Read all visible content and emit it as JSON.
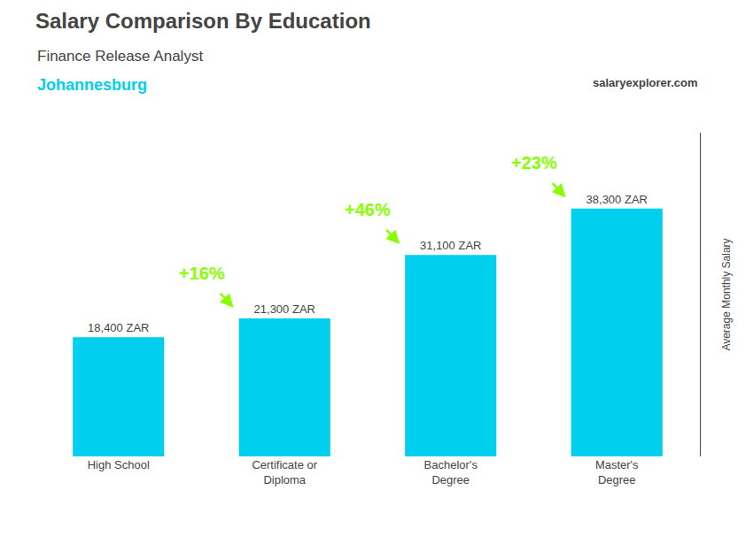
{
  "chart_data": {
    "type": "bar",
    "title": "Salary Comparison By Education",
    "subtitle": "Finance Release Analyst",
    "city": "Johannesburg",
    "website": "salaryexplorer.com",
    "ylabel": "Average Monthly Salary",
    "categories": [
      "High School",
      "Certificate or\nDiploma",
      "Bachelor's\nDegree",
      "Master's\nDegree"
    ],
    "values": [
      18400,
      21300,
      31100,
      38300
    ],
    "value_labels": [
      "18,400 ZAR",
      "21,300 ZAR",
      "31,100 ZAR",
      "38,300 ZAR"
    ],
    "color": "#00cfee",
    "data_labels": true,
    "ylim": [
      0,
      50000
    ],
    "tick_labels": "x",
    "grid": false,
    "annotations": [
      {
        "text": "+16%",
        "color": "#88ff00"
      },
      {
        "text": "+46%",
        "color": "#88ff00"
      },
      {
        "text": "+23%",
        "color": "#88ff00"
      }
    ]
  }
}
